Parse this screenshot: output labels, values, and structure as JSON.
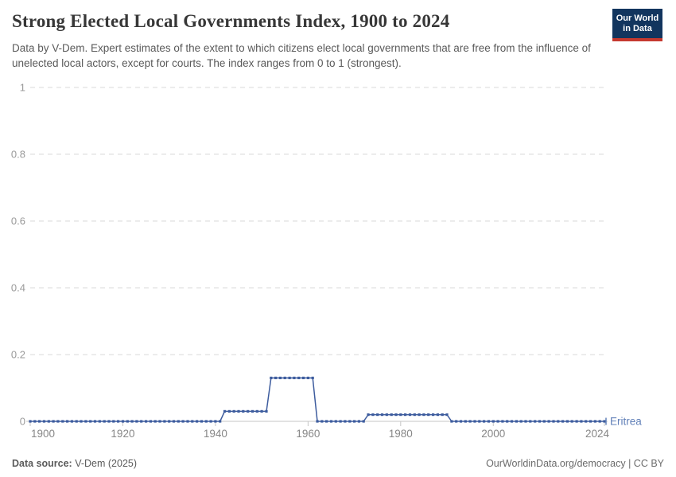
{
  "header": {
    "title": "Strong Elected Local Governments Index, 1900 to 2024",
    "subtitle": "Data by V-Dem. Expert estimates of the extent to which citizens elect local governments that are free from the influence of unelected local actors, except for courts. The index ranges from 0 to 1 (strongest).",
    "logo": {
      "line1": "Our World",
      "line2": "in Data"
    }
  },
  "chart_data": {
    "type": "line",
    "title": "Strong Elected Local Governments Index, 1900 to 2024",
    "xlabel": "",
    "ylabel": "",
    "x_range": [
      1900,
      2024
    ],
    "y_range": [
      0,
      1
    ],
    "x_ticks": [
      1900,
      1920,
      1940,
      1960,
      1980,
      2000,
      2024
    ],
    "x_tick_labels": [
      "1900",
      "1920",
      "1940",
      "1960",
      "1980",
      "2000",
      "2024"
    ],
    "y_ticks": [
      0,
      0.2,
      0.4,
      0.6,
      0.8,
      1
    ],
    "y_tick_labels": [
      "0",
      "0.2",
      "0.4",
      "0.6",
      "0.8",
      "1"
    ],
    "grid": "horizontal-dashed",
    "legend_position": "end-of-line-label",
    "marker": "square-every-year",
    "series": [
      {
        "name": "Eritrea",
        "color": "#3d5c9e",
        "label_color": "#6180b8",
        "segments": [
          {
            "from": 1900,
            "to": 1941,
            "value": 0
          },
          {
            "from": 1942,
            "to": 1951,
            "value": 0.03
          },
          {
            "from": 1952,
            "to": 1961,
            "value": 0.13
          },
          {
            "from": 1962,
            "to": 1972,
            "value": 0
          },
          {
            "from": 1973,
            "to": 1990,
            "value": 0.02
          },
          {
            "from": 1991,
            "to": 2024,
            "value": 0
          }
        ]
      }
    ],
    "colors": {
      "grid_dashed": "#dadada",
      "zero_axis": "#c6c6c6",
      "tick_mark": "#c6c6c6",
      "y_tick_label": "#9a9a9a",
      "x_tick_label": "#878787"
    }
  },
  "footer": {
    "source_label": "Data source:",
    "source_value": " V-Dem (2025)",
    "credit": "OurWorldinData.org/democracy | CC BY"
  }
}
